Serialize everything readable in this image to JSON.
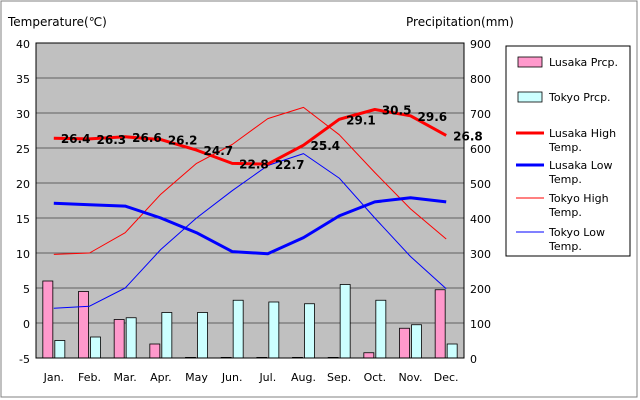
{
  "chart_data": {
    "type": "bar",
    "left_axis_title": "Temperature(℃)",
    "right_axis_title": "Precipitation(mm)",
    "categories": [
      "Jan.",
      "Feb.",
      "Mar.",
      "Apr.",
      "May",
      "Jun.",
      "Jul.",
      "Aug.",
      "Sep.",
      "Oct.",
      "Nov.",
      "Dec."
    ],
    "ylim_left": [
      -5,
      40
    ],
    "yticks_left": [
      "-5",
      "0",
      "5",
      "10",
      "15",
      "20",
      "25",
      "30",
      "35",
      "40"
    ],
    "ylim_right": [
      0,
      900
    ],
    "yticks_right": [
      "0",
      "100",
      "200",
      "300",
      "400",
      "500",
      "600",
      "700",
      "800",
      "900"
    ],
    "grid": true,
    "legend_position": "right",
    "bar_series": [
      {
        "name": "Lusaka Prcp.",
        "color": "#ff99cc",
        "values": [
          220,
          190,
          110,
          40,
          1,
          0,
          0,
          0,
          1,
          15,
          85,
          195
        ]
      },
      {
        "name": "Tokyo Prcp.",
        "color": "#ccffff",
        "values": [
          50,
          60,
          115,
          130,
          130,
          165,
          160,
          155,
          210,
          165,
          95,
          40
        ]
      }
    ],
    "line_series": [
      {
        "name": "Lusaka High Temp.",
        "color": "#ff0000",
        "width": 3,
        "values": [
          26.4,
          26.3,
          26.6,
          26.2,
          24.7,
          22.8,
          22.7,
          25.4,
          29.1,
          30.5,
          29.6,
          26.8
        ],
        "labels": [
          "26.4",
          "26.3",
          "26.6",
          "26.2",
          "24.7",
          "22.8",
          "22.7",
          "25.4",
          "29.1",
          "30.5",
          "29.6",
          "26.8"
        ]
      },
      {
        "name": "Lusaka Low Temp.",
        "color": "#0000ff",
        "width": 3,
        "values": [
          17.1,
          16.9,
          16.7,
          15.0,
          12.9,
          10.2,
          9.9,
          12.2,
          15.3,
          17.3,
          17.9,
          17.3
        ]
      },
      {
        "name": "Tokyo High Temp.",
        "color": "#ff0000",
        "width": 1,
        "values": [
          9.8,
          10.0,
          12.9,
          18.4,
          22.8,
          25.5,
          29.2,
          30.8,
          26.9,
          21.5,
          16.3,
          12.0
        ]
      },
      {
        "name": "Tokyo Low Temp.",
        "color": "#0000ff",
        "width": 1,
        "values": [
          2.1,
          2.4,
          5.0,
          10.5,
          15.0,
          18.9,
          22.5,
          24.2,
          20.7,
          15.0,
          9.5,
          4.9
        ]
      }
    ]
  },
  "legend": {
    "items": [
      {
        "label": "Lusaka Prcp.",
        "kind": "bar",
        "color": "#ff99cc"
      },
      {
        "label": "Tokyo Prcp.",
        "kind": "bar",
        "color": "#ccffff"
      },
      {
        "label": "Lusaka High Temp.",
        "kind": "line",
        "color": "#ff0000",
        "width": 3
      },
      {
        "label": "Lusaka Low Temp.",
        "kind": "line",
        "color": "#0000ff",
        "width": 3
      },
      {
        "label": "Tokyo High Temp.",
        "kind": "line",
        "color": "#ff0000",
        "width": 1
      },
      {
        "label": "Tokyo Low Temp.",
        "kind": "line",
        "color": "#0000ff",
        "width": 1
      }
    ]
  },
  "colors": {
    "plot_background": "#c0c0c0",
    "gridline": "#000000"
  }
}
